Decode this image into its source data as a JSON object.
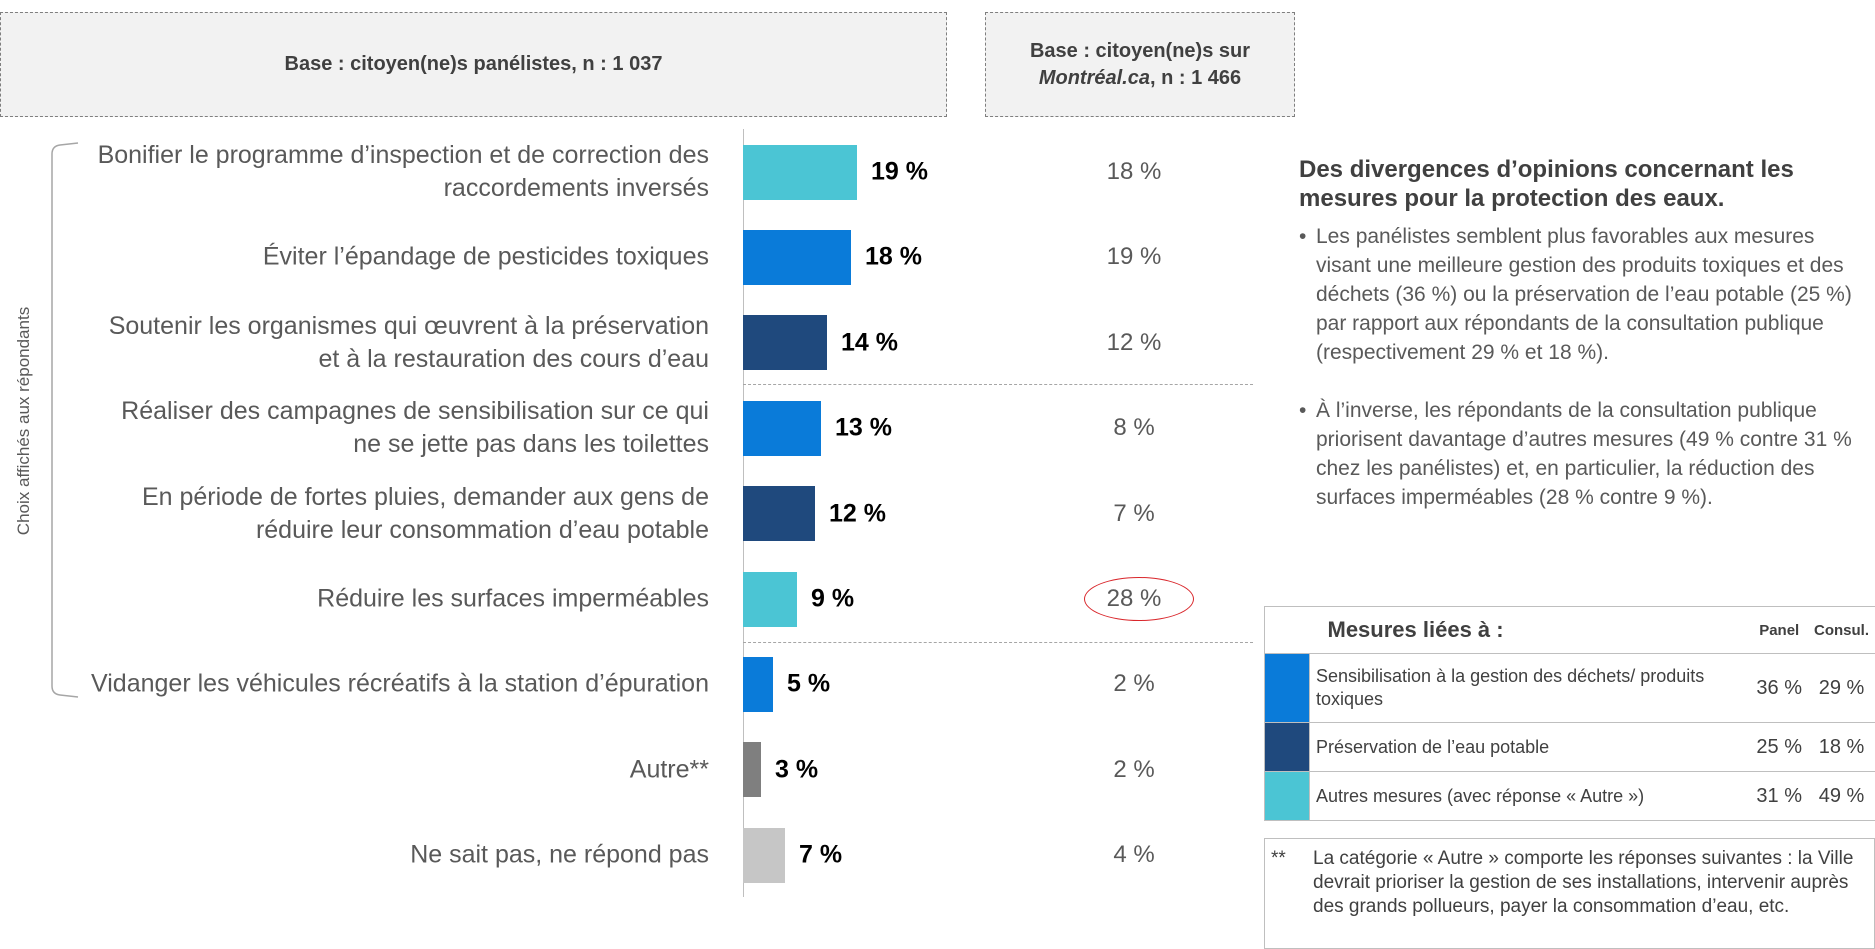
{
  "chart_data": {
    "type": "bar",
    "categories": [
      "Bonifier le programme d’inspection et de correction des raccordements inversés",
      "Éviter l’épandage de pesticides toxiques",
      "Soutenir les organismes qui œuvrent à la préservation et à la restauration des cours d’eau",
      "Réaliser des campagnes de sensibilisation sur ce qui ne se jette pas dans les toilettes",
      "En période de fortes pluies, demander aux gens de réduire leur consommation d’eau potable",
      "Réduire les surfaces imperméables",
      "Vidanger les véhicules récréatifs à la station d’épuration",
      "Autre**",
      "Ne sait pas, ne répond pas"
    ],
    "series": [
      {
        "name": [
          "Base : citoyen(ne)s panélistes, n : 1 037"
        ],
        "values": [
          19,
          18,
          14,
          13,
          12,
          9,
          5,
          3,
          7
        ],
        "value_labels": [
          "19 %",
          "18 %",
          "14 %",
          "13 %",
          "12 %",
          "9 %",
          "5 %",
          "3 %",
          "7 %"
        ],
        "colors": [
          "#4bc5d4",
          "#0a7bd9",
          "#1f497d",
          "#0a7bd9",
          "#1f497d",
          "#4bc5d4",
          "#0a7bd9",
          "#7f7f7f",
          "#c6c6c6"
        ]
      },
      {
        "name": [
          "Base : citoyen(ne)s sur",
          "Montréal.ca",
          ", n : 1 466"
        ],
        "values": [
          18,
          19,
          12,
          8,
          7,
          28,
          2,
          2,
          4
        ],
        "value_labels": [
          "18 %",
          "19 %",
          "12 %",
          "8 %",
          "7 %",
          "28 %",
          "2 %",
          "2 %",
          "4 %"
        ]
      }
    ],
    "highlighted_index": 5,
    "bracket_label": "Choix affichés aux répondants"
  },
  "side": {
    "heading": "Des divergences d’opinions concernant les mesures pour la protection des eaux.",
    "bullets": [
      "Les panélistes semblent plus favorables aux mesures visant une meilleure gestion des produits toxiques et des déchets (36 %) ou la préservation de l’eau potable (25 %) par rapport aux répondants de la consultation publique (respectivement 29 % et 18 %).",
      "À l’inverse, les répondants de la consultation publique priorisent davantage d’autres mesures (49 % contre 31 % chez les panélistes) et, en particulier, la réduction des surfaces imperméables (28 % contre 9 %)."
    ],
    "table": {
      "header": [
        "Mesures liées à :",
        "Panel",
        "Consul."
      ],
      "rows": [
        {
          "color": "#0a7bd9",
          "cells": [
            "Sensibilisation à la gestion des déchets/ produits toxiques",
            "36 %",
            "29 %"
          ]
        },
        {
          "color": "#1f497d",
          "cells": [
            "Préservation de l’eau potable",
            "25 %",
            "18 %"
          ]
        },
        {
          "color": "#4bc5d4",
          "cells": [
            "Autres mesures (avec réponse « Autre »)",
            "31 %",
            "49 %"
          ]
        }
      ]
    },
    "footnote": {
      "marker": "**",
      "text": "La catégorie « Autre » comporte les réponses suivantes : la Ville devrait prioriser la gestion de ses installations, intervenir auprès des grands pollueurs, payer la consommation d’eau, etc."
    }
  }
}
